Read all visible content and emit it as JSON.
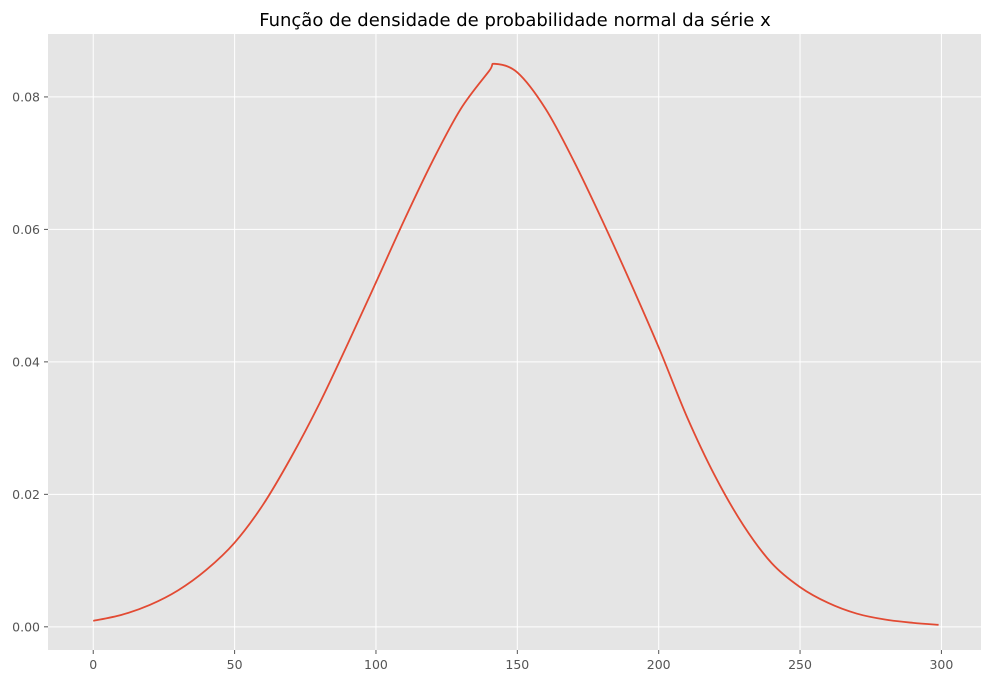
{
  "chart_data": {
    "type": "line",
    "title": "Função de densidade de probabilidade normal da série x",
    "xlabel": "",
    "ylabel": "",
    "xlim": [
      -16,
      314
    ],
    "ylim": [
      -0.0035,
      0.0895
    ],
    "x_ticks": [
      0,
      50,
      100,
      150,
      200,
      250,
      300
    ],
    "x_tick_labels": [
      "0",
      "50",
      "100",
      "150",
      "200",
      "250",
      "300"
    ],
    "y_ticks": [
      0.0,
      0.02,
      0.04,
      0.06,
      0.08
    ],
    "y_tick_labels": [
      "0.00",
      "0.02",
      "0.04",
      "0.06",
      "0.08"
    ],
    "grid": true,
    "series": [
      {
        "color": "#E24A33",
        "x": [
          0,
          10,
          20,
          30,
          40,
          50,
          60,
          70,
          80,
          90,
          100,
          110,
          120,
          130,
          140,
          142,
          150,
          160,
          170,
          180,
          190,
          200,
          210,
          220,
          230,
          240,
          250,
          260,
          270,
          280,
          290,
          299
        ],
        "y": [
          0.0009,
          0.0018,
          0.0033,
          0.0055,
          0.0086,
          0.0127,
          0.0184,
          0.0256,
          0.0337,
          0.0427,
          0.052,
          0.0614,
          0.0703,
          0.0782,
          0.0839,
          0.085,
          0.0837,
          0.0782,
          0.0703,
          0.0614,
          0.052,
          0.0422,
          0.0317,
          0.0227,
          0.0153,
          0.0096,
          0.006,
          0.0036,
          0.002,
          0.0011,
          0.0006,
          0.0003
        ]
      }
    ]
  },
  "colors": {
    "plot_background": "#E5E5E5",
    "grid": "#FFFFFF",
    "line": "#E24A33",
    "tick_text": "#555555"
  }
}
